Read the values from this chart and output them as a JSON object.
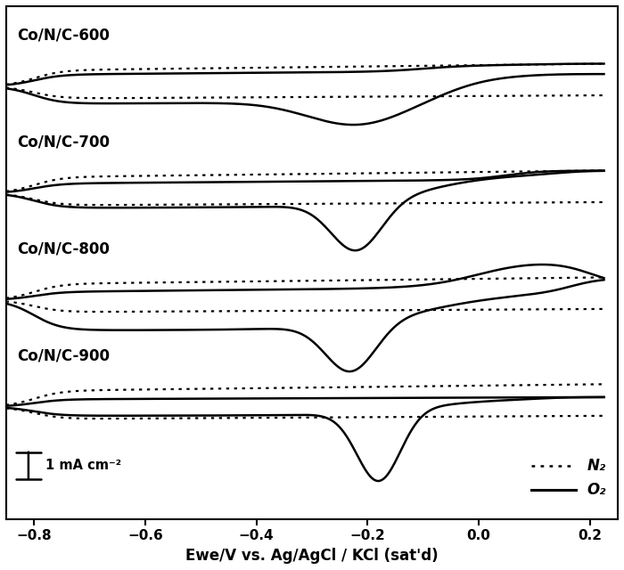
{
  "xlabel": "Ewe/V vs. Ag/AgCl / KCl (sat'd)",
  "xlim": [
    -0.85,
    0.25
  ],
  "xticks": [
    -0.8,
    -0.6,
    -0.4,
    -0.2,
    0.0,
    0.2
  ],
  "labels": [
    "Co/N/C-600",
    "Co/N/C-700",
    "Co/N/C-800",
    "Co/N/C-900"
  ],
  "scale_bar_label": "1 mA cm⁻²",
  "legend_n2": "N₂",
  "legend_o2": "O₂",
  "panel_offsets": [
    3.0,
    2.0,
    1.0,
    0.0
  ],
  "n2_upper_amp": 0.18,
  "n2_lower_amp": -0.1
}
